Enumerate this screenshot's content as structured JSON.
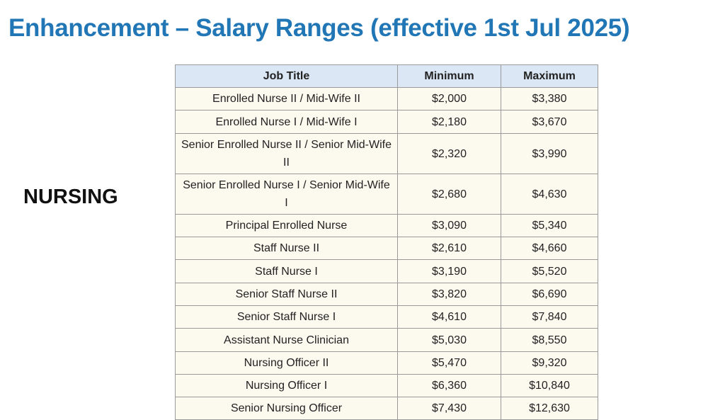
{
  "header": {
    "title": "Enhancement – Salary Ranges (effective 1st Jul 2025)"
  },
  "section_label": "NURSING",
  "table": {
    "columns": [
      "Job Title",
      "Minimum",
      "Maximum"
    ],
    "rows": [
      [
        "Enrolled Nurse II / Mid-Wife II",
        "$2,000",
        "$3,380"
      ],
      [
        "Enrolled Nurse I / Mid-Wife I",
        "$2,180",
        "$3,670"
      ],
      [
        "Senior Enrolled Nurse II / Senior Mid-Wife II",
        "$2,320",
        "$3,990"
      ],
      [
        "Senior Enrolled Nurse I / Senior Mid-Wife I",
        "$2,680",
        "$4,630"
      ],
      [
        "Principal Enrolled Nurse",
        "$3,090",
        "$5,340"
      ],
      [
        "Staff Nurse II",
        "$2,610",
        "$4,660"
      ],
      [
        "Staff Nurse I",
        "$3,190",
        "$5,520"
      ],
      [
        "Senior Staff Nurse II",
        "$3,820",
        "$6,690"
      ],
      [
        "Senior Staff Nurse I",
        "$4,610",
        "$7,840"
      ],
      [
        "Assistant Nurse Clinician",
        "$5,030",
        "$8,550"
      ],
      [
        "Nursing Officer II",
        "$5,470",
        "$9,320"
      ],
      [
        "Nursing Officer I",
        "$6,360",
        "$10,840"
      ],
      [
        "Senior Nursing Officer",
        "$7,430",
        "$12,630"
      ]
    ]
  }
}
